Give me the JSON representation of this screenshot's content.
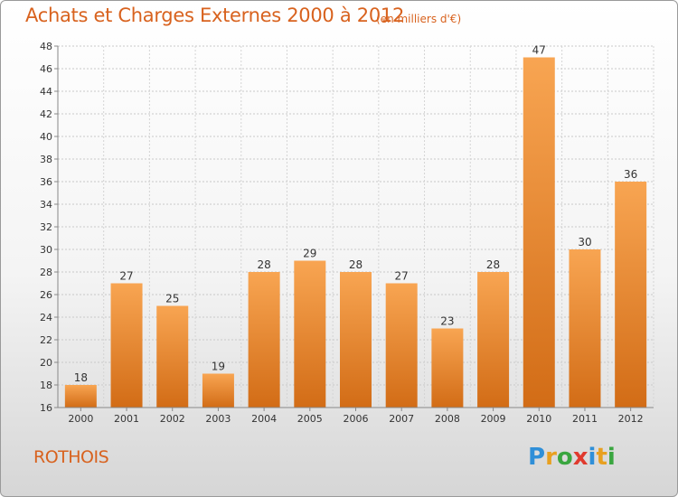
{
  "title": "Achats et Charges Externes 2000 à 2012",
  "unit": "(en milliers d'€)",
  "commune": "ROTHOIS",
  "logo": {
    "text": "Proxiti",
    "letters": [
      "P",
      "r",
      "o",
      "x",
      "i",
      "t",
      "i"
    ],
    "colors": [
      "#2f8fd8",
      "#e8a020",
      "#3aa640",
      "#e03a2e",
      "#2f8fd8",
      "#e8a020",
      "#3aa640"
    ]
  },
  "colors": {
    "accent": "#d8621e",
    "bar_top": "#f8a552",
    "bar_bottom": "#d26c16"
  },
  "chart_data": {
    "type": "bar",
    "title": "Achats et Charges Externes 2000 à 2012",
    "categories": [
      "2000",
      "2001",
      "2002",
      "2003",
      "2004",
      "2005",
      "2006",
      "2007",
      "2008",
      "2009",
      "2010",
      "2011",
      "2012"
    ],
    "values": [
      18,
      27,
      25,
      19,
      28,
      29,
      28,
      27,
      23,
      28,
      47,
      30,
      36
    ],
    "ylim": [
      16,
      48
    ],
    "yticks": [
      16,
      18,
      20,
      22,
      24,
      26,
      28,
      30,
      32,
      34,
      36,
      38,
      40,
      42,
      44,
      46,
      48
    ],
    "grid": true,
    "xlabel": "",
    "ylabel": ""
  }
}
